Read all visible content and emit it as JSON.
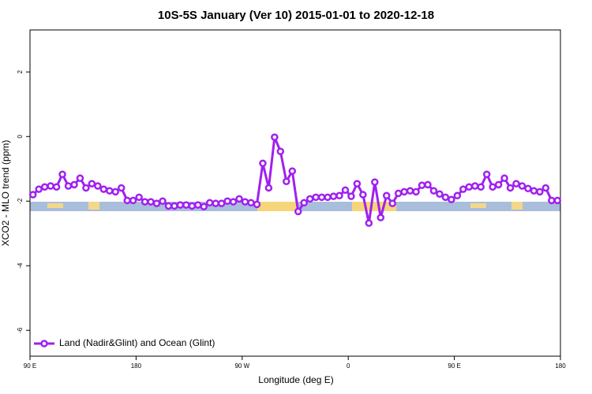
{
  "chart_data": {
    "type": "line",
    "title": "10S-5S January (Ver 10)   2015-01-01 to 2020-12-18",
    "x_label": "Longitude (deg E)",
    "y_label": "XCO2 - MLO trend (ppm)",
    "xlim": [
      90,
      540
    ],
    "ylim": [
      -6.8,
      3.3
    ],
    "xticks": [
      {
        "value": 90,
        "label": "90 E"
      },
      180,
      {
        "value": 270,
        "label": "90 W"
      },
      {
        "value": 360,
        "label": "0"
      },
      {
        "value": 450,
        "label": "90 E"
      },
      {
        "value": 540,
        "label": "180"
      }
    ],
    "yticks": [
      -6,
      -4,
      -2,
      0,
      2
    ],
    "legend": "bottom-left",
    "x": [
      92.5,
      97.5,
      102.5,
      107.5,
      112.5,
      117.5,
      122.5,
      127.5,
      132.5,
      137.5,
      142.5,
      147.5,
      152.5,
      157.5,
      162.5,
      167.5,
      172.5,
      177.5,
      182.5,
      187.5,
      192.5,
      197.5,
      202.5,
      207.5,
      212.5,
      217.5,
      222.5,
      227.5,
      232.5,
      237.5,
      242.5,
      247.5,
      252.5,
      257.5,
      262.5,
      267.5,
      272.5,
      277.5,
      282.5,
      287.5,
      292.5,
      297.5,
      302.5,
      307.5,
      312.5,
      317.5,
      322.5,
      327.5,
      332.5,
      337.5,
      342.5,
      347.5,
      352.5,
      357.5,
      362.5,
      367.5,
      372.5,
      377.5,
      382.5,
      387.5,
      392.5,
      397.5,
      402.5,
      407.5,
      412.5,
      417.5,
      422.5,
      427.5,
      432.5,
      437.5,
      442.5,
      447.5,
      452.5,
      457.5,
      462.5,
      467.5,
      472.5,
      477.5,
      482.5,
      487.5,
      492.5,
      497.5,
      502.5,
      507.5,
      512.5,
      517.5,
      522.5,
      527.5,
      532.5,
      537.5
    ],
    "series": [
      {
        "name": "Land (Nadir&Glint) and Ocean (Glint)",
        "color": "#a020f0",
        "values": [
          -1.8,
          -1.63,
          -1.56,
          -1.53,
          -1.56,
          -1.17,
          -1.53,
          -1.49,
          -1.29,
          -1.59,
          -1.46,
          -1.53,
          -1.63,
          -1.68,
          -1.71,
          -1.59,
          -1.98,
          -1.98,
          -1.88,
          -2.02,
          -2.02,
          -2.07,
          -2.0,
          -2.15,
          -2.15,
          -2.12,
          -2.12,
          -2.15,
          -2.12,
          -2.17,
          -2.05,
          -2.07,
          -2.07,
          -2.0,
          -2.02,
          -1.93,
          -2.02,
          -2.05,
          -2.1,
          -0.83,
          -1.59,
          -0.02,
          -0.46,
          -1.39,
          -1.07,
          -2.32,
          -2.05,
          -1.93,
          -1.88,
          -1.88,
          -1.88,
          -1.85,
          -1.83,
          -1.66,
          -1.85,
          -1.46,
          -1.8,
          -2.68,
          -1.41,
          -2.51,
          -1.83,
          -2.07,
          -1.76,
          -1.71,
          -1.68,
          -1.71,
          -1.51,
          -1.49,
          -1.68,
          -1.78,
          -1.88,
          -1.95,
          -1.83,
          -1.63,
          -1.56,
          -1.53,
          -1.56,
          -1.17,
          -1.56,
          -1.49,
          -1.29,
          -1.59,
          -1.46,
          -1.53,
          -1.61,
          -1.68,
          -1.71,
          -1.59,
          -1.98,
          -1.98
        ]
      }
    ]
  }
}
